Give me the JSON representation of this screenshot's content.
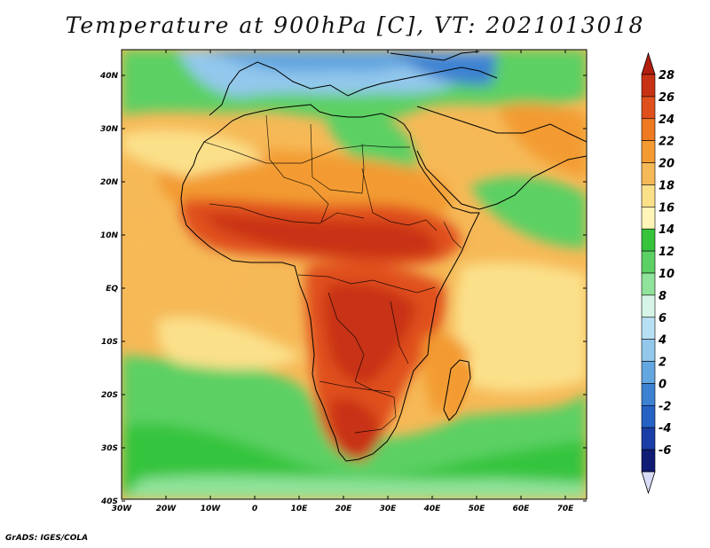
{
  "title": "Temperature at 900hPa [C], VT: 2021013018",
  "credit": "GrADS: IGES/COLA",
  "map": {
    "lon_range": [
      -30,
      75
    ],
    "lat_range": [
      -40,
      45
    ],
    "lon_ticks": [
      "30W",
      "20W",
      "10W",
      "0",
      "10E",
      "20E",
      "30E",
      "40E",
      "50E",
      "60E",
      "70E"
    ],
    "lat_ticks": [
      "40N",
      "30N",
      "20N",
      "10N",
      "EQ",
      "10S",
      "20S",
      "30S",
      "40S"
    ]
  },
  "colorbar": {
    "levels": [
      "28",
      "26",
      "24",
      "22",
      "20",
      "18",
      "16",
      "14",
      "12",
      "10",
      "8",
      "6",
      "4",
      "2",
      "0",
      "-2",
      "-4",
      "-6"
    ],
    "colors": [
      "#c83214",
      "#e0501c",
      "#ee7a22",
      "#f39b32",
      "#f6b957",
      "#fbe08a",
      "#fff5b8",
      "#36c43c",
      "#5cd064",
      "#8fe39a",
      "#d6f5e6",
      "#b8e0f4",
      "#93c8ec",
      "#64a6e0",
      "#3d82d2",
      "#2662c6",
      "#1a3ea8",
      "#101c74"
    ],
    "cap_top_color": "#b21e0e",
    "cap_bottom_color": "#d8dcf6"
  }
}
